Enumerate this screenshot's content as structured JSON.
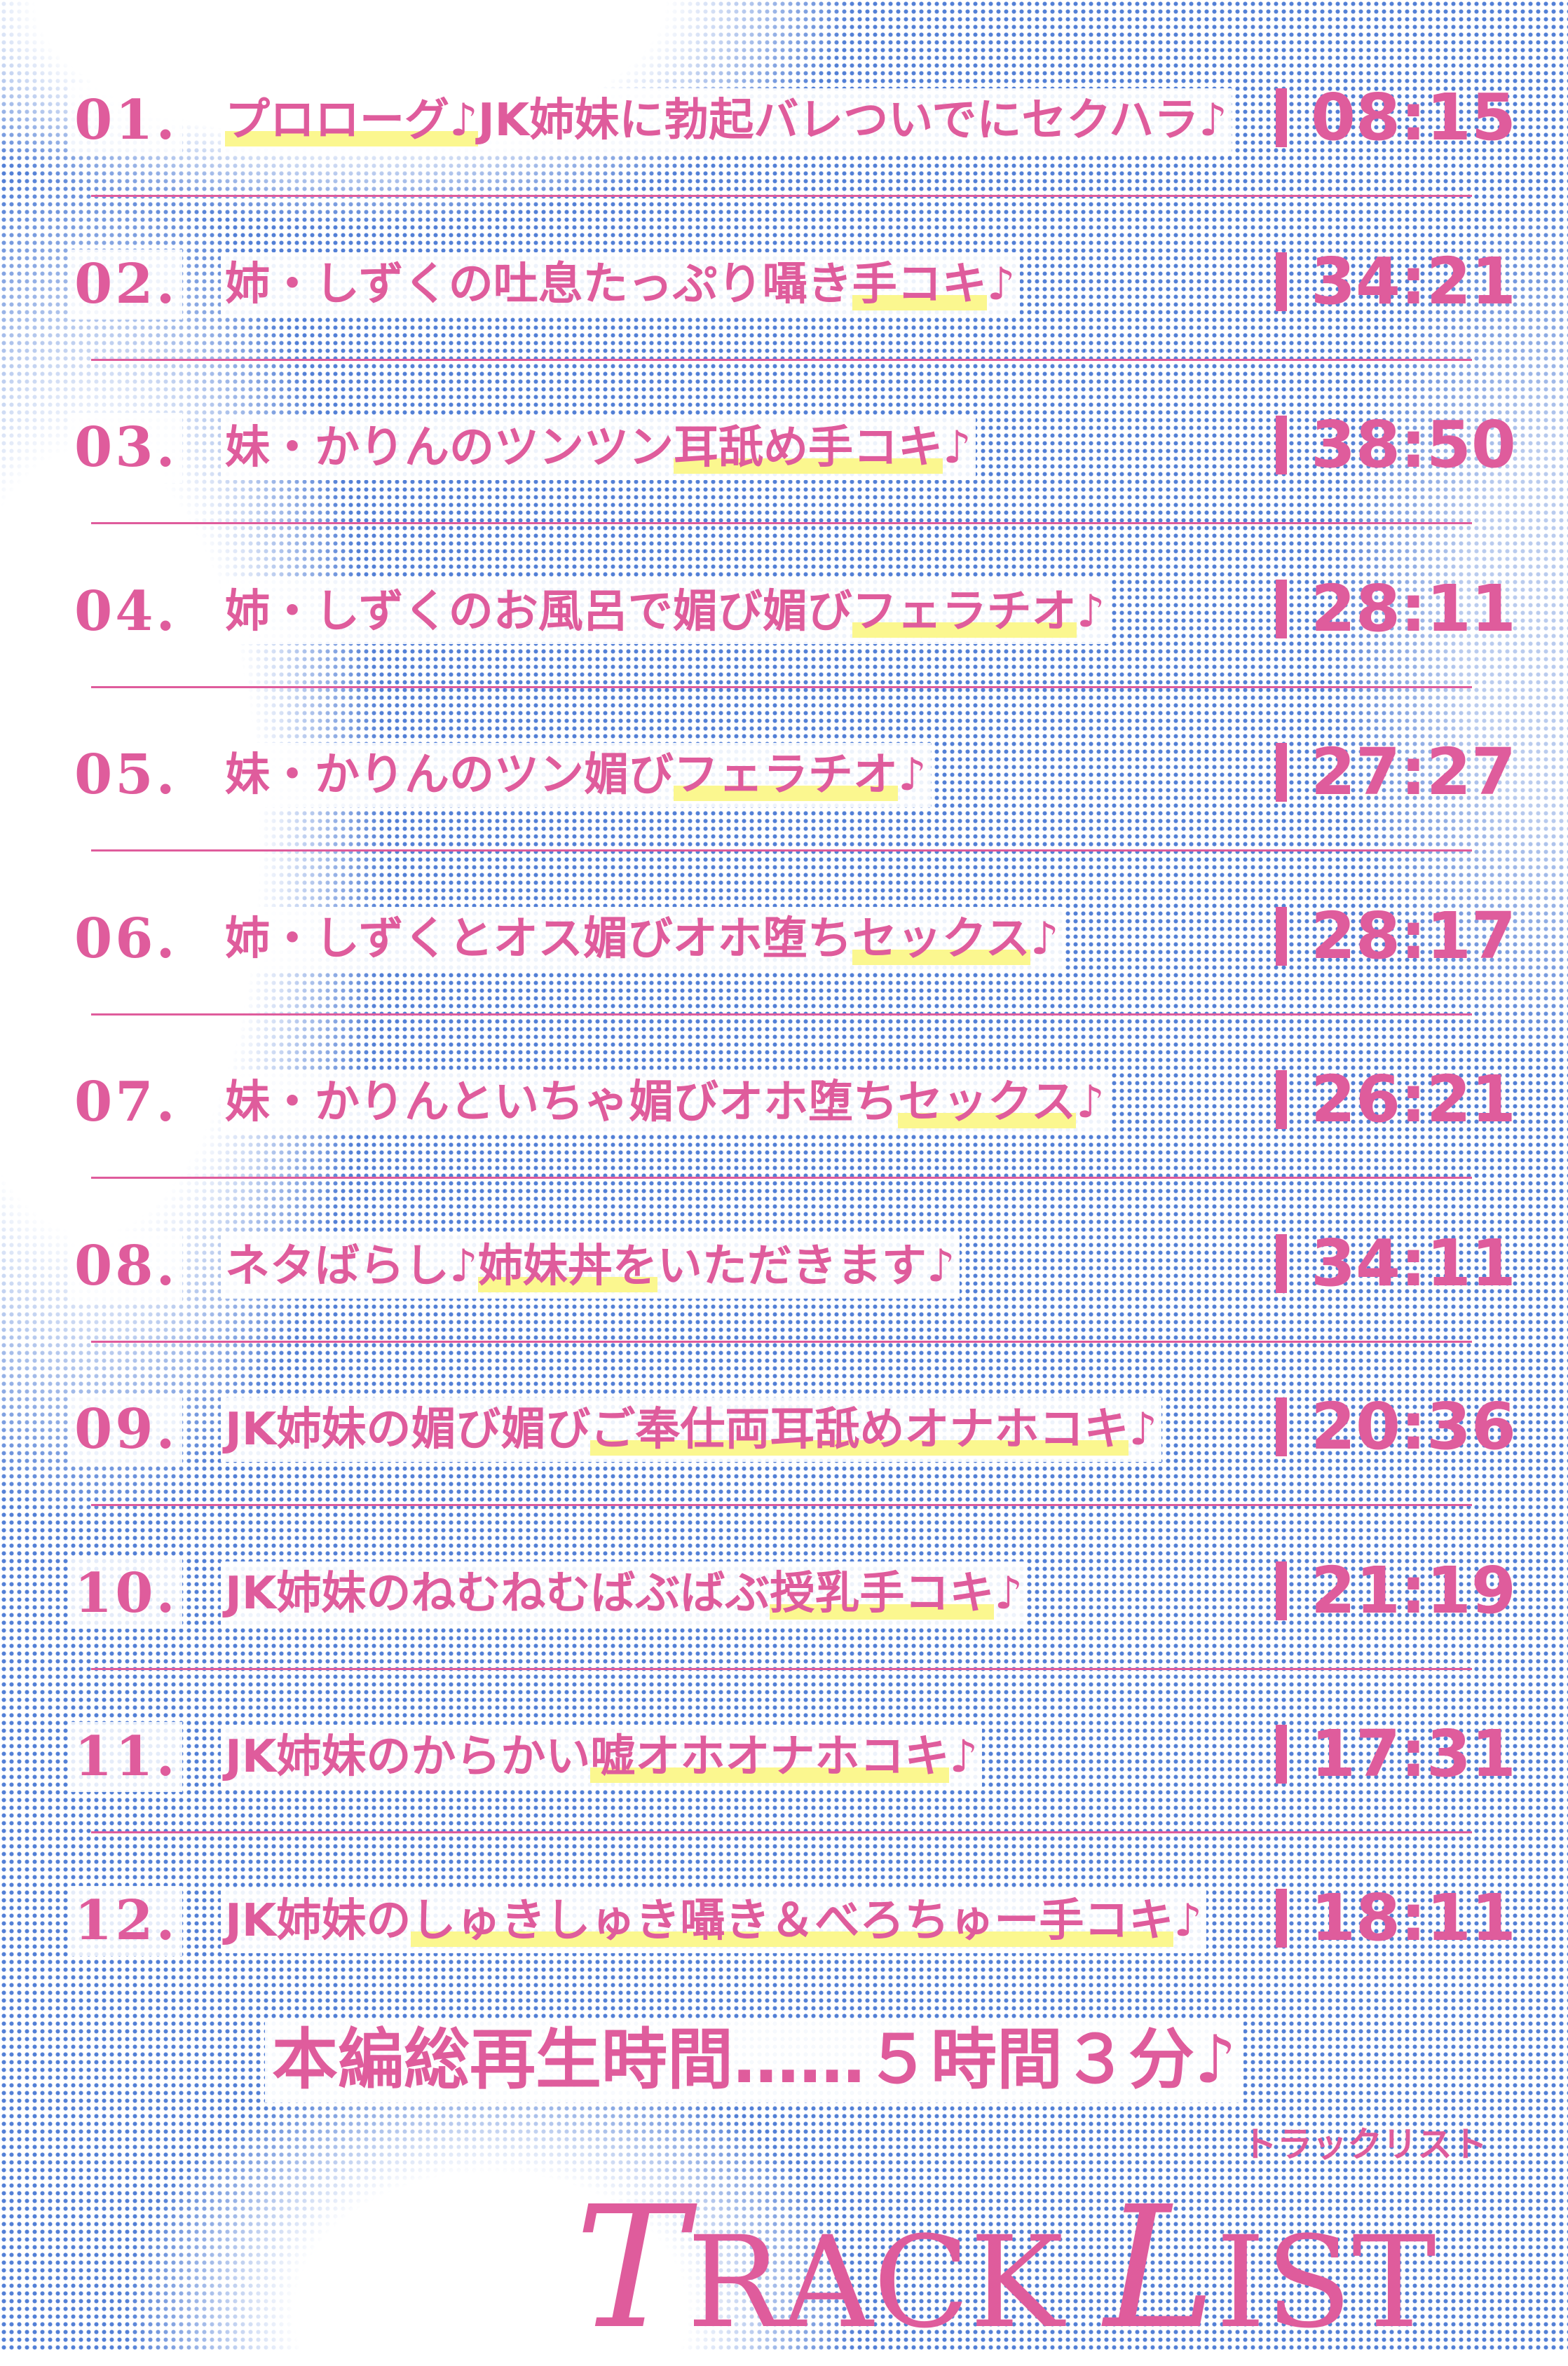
{
  "colors": {
    "accent": "#df5c9c",
    "highlight": "#fbf78f",
    "halftone": "#1a55c8"
  },
  "tracks": [
    {
      "num": "01.",
      "pre": "",
      "hl": "プロローグ♪",
      "post": "JK姉妹に勃起バレついでにセクハラ♪",
      "time": "08:15"
    },
    {
      "num": "02.",
      "pre": "姉・しずくの吐息たっぷり囁き",
      "hl": "手コキ",
      "post": "♪",
      "time": "34:21"
    },
    {
      "num": "03.",
      "pre": "妹・かりんのツンツン",
      "hl": "耳舐め手コキ",
      "post": "♪",
      "time": "38:50"
    },
    {
      "num": "04.",
      "pre": "姉・しずくのお風呂で媚び媚び",
      "hl": "フェラチオ",
      "post": "♪",
      "time": "28:11"
    },
    {
      "num": "05.",
      "pre": "妹・かりんのツン媚び",
      "hl": "フェラチオ",
      "post": "♪",
      "time": "27:27"
    },
    {
      "num": "06.",
      "pre": "姉・しずくとオス媚びオホ堕ち",
      "hl": "セックス",
      "post": "♪",
      "time": "28:17"
    },
    {
      "num": "07.",
      "pre": "妹・かりんといちゃ媚びオホ堕ち",
      "hl": "セックス",
      "post": "♪",
      "time": "26:21"
    },
    {
      "num": "08.",
      "pre": "ネタばらし♪",
      "hl": "姉妹丼を",
      "post": "いただきます♪",
      "time": "34:11"
    },
    {
      "num": "09.",
      "pre": "JK姉妹の媚び媚び",
      "hl": "ご奉仕両耳舐めオナホコキ",
      "post": "♪",
      "time": "20:36"
    },
    {
      "num": "10.",
      "pre": "JK姉妹のねむねむばぶばぶ",
      "hl": "授乳手コキ",
      "post": "♪",
      "time": "21:19"
    },
    {
      "num": "11.",
      "pre": "JK姉妹のからかい",
      "hl": "嘘オホオナホコキ",
      "post": "♪",
      "time": "17:31"
    },
    {
      "num": "12.",
      "pre": "JK姉妹の",
      "hl": "しゅきしゅき囁き＆べろちゅー手コキ",
      "post": "♪",
      "time": "18:11"
    }
  ],
  "total": "本編総再生時間……５時間３分♪",
  "subtitle": "トラックリスト",
  "logo": {
    "t": "T",
    "rack": "RACK ",
    "l": "L",
    "ist": "IST"
  }
}
